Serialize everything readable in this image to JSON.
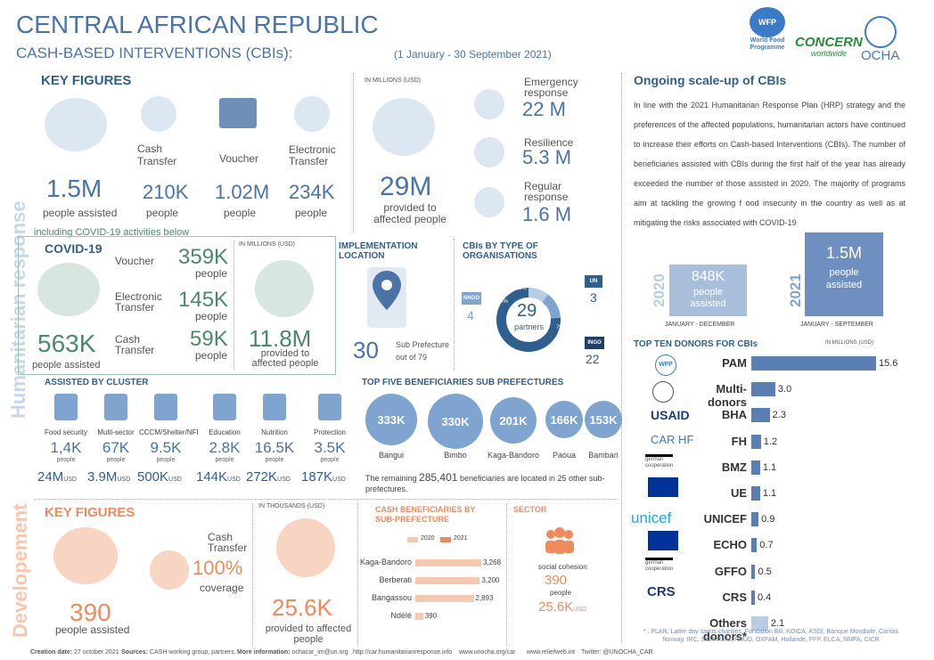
{
  "header": {
    "title": "CENTRAL AFRICAN REPUBLIC",
    "subtitle": "CASH-BASED INTERVENTIONS (CBIs):",
    "period": "(1 January -  30 September 2021)"
  },
  "logos": {
    "wfp": "WFP",
    "wfp_name": "World Food Programme",
    "concern": "CONCERN",
    "concern_sub": "worldwide",
    "ocha": "OCHA"
  },
  "sidebar": {
    "humanitarian": "Humanitarian response",
    "development": "Developement"
  },
  "key_figures": {
    "title": "KEY FIGURES",
    "people_value": "1.5M",
    "people_label": "people assisted",
    "cash_label": "Cash\nTransfer",
    "cash_value": "210K",
    "cash_unit": "people",
    "voucher_label": "Voucher",
    "voucher_value": "1.02M",
    "voucher_unit": "people",
    "electronic_label": "Electronic\nTransfer",
    "electronic_value": "234K",
    "electronic_unit": "people",
    "covid_note": "including COVID-19 activities below",
    "millions_label": "IN MILLIONS (USD)",
    "total_value": "29M",
    "total_label": "provided to\naffected people",
    "emergency_label": "Emergency\nresponse",
    "emergency_value": "22 M",
    "resilience_label": "Resilience",
    "resilience_value": "5.3 M",
    "regular_label": "Regular\nresponse",
    "regular_value": "1.6 M"
  },
  "covid": {
    "title": "COVID-19",
    "voucher_label": "Voucher",
    "voucher_value": "359K",
    "voucher_unit": "people",
    "electronic_label": "Electronic\nTransfer",
    "electronic_value": "145K",
    "electronic_unit": "people",
    "cash_label": "Cash\nTransfer",
    "cash_value": "59K",
    "cash_unit": "people",
    "people_value": "563K",
    "people_label": "people assisted",
    "millions_label": "IN MILLIONS (USD)",
    "total_value": "11.8M",
    "total_label": "provided to\naffected people"
  },
  "implementation": {
    "title": "IMPLEMENTATION\nLOCATION",
    "value": "30",
    "label": "Sub Prefecture\nout of 79"
  },
  "orgs": {
    "title": "CBIs BY TYPE OF\nORGANISATIONS",
    "center_value": "29",
    "center_label": "partners",
    "nngo_label": "NNGO",
    "nngo_value": "4",
    "un_label": "UN",
    "un_value": "3",
    "ingo_label": "INGO",
    "ingo_value": "22",
    "pct_11": "11%",
    "pct_14": "14%",
    "pct_79": "79%",
    "share_ingo": 0.79,
    "share_nngo": 0.14,
    "share_un": 0.11,
    "color_ingo": "#2f5f8f",
    "color_nngo": "#7ea4cf",
    "color_un": "#b7cde4"
  },
  "scaleup": {
    "title": "Ongoing scale-up of CBIs",
    "text": "In line with the 2021 Humanitarian Response Plan (HRP)  strategy and the preferences of the affected populations,   humanitarian actors have continued to increase their efforts on Cash-based Interventions (CBIs). The number of beneficiaries assisted with CBIs during the first half of  the  year has already  exceeded  the number of  those assisted in 2020. The majority of programs aim  at tackling the  growing f ood insecurity in the country as well as at mitigating the risks associated with COVID-19",
    "y2020": "2020",
    "v2020": "848K",
    "l2020": "people\nassisted",
    "p2020": "JANUARY - DECEMBER",
    "y2021": "2021",
    "v2021": "1.5M",
    "l2021": "people\nassisted",
    "p2021": "JANUARY - SEPTEMBER"
  },
  "clusters": {
    "title": "ASSISTED BY CLUSTER",
    "unit": "people",
    "usd": "USD",
    "items": [
      {
        "name": "Food security",
        "people": "1,4K",
        "usd": "24M"
      },
      {
        "name": "Multi-sector",
        "people": "67K",
        "usd": "3.9M"
      },
      {
        "name": "CCCM/Shelter/NFI",
        "people": "9.5K",
        "usd": "500K"
      },
      {
        "name": "Education",
        "people": "2.8K",
        "usd": "144K"
      },
      {
        "name": "Nutrition",
        "people": "16.5K",
        "usd": "272K"
      },
      {
        "name": "Protection",
        "people": "3.5K",
        "usd": "187K"
      }
    ]
  },
  "top5": {
    "title": "TOP FIVE BENEFICIARIES SUB PREFECTURES",
    "items": [
      {
        "value": "333K",
        "name": "Bangui"
      },
      {
        "value": "330K",
        "name": "Bimbo"
      },
      {
        "value": "201K",
        "name": "Kaga-Bandoro"
      },
      {
        "value": "166K",
        "name": "Paoua"
      },
      {
        "value": "153K",
        "name": "Bambari"
      }
    ],
    "remaining_pre": "The remaining",
    "remaining_value": "285,401",
    "remaining_post": "beneficiaries are located in 25  other sub-prefectures."
  },
  "donors": {
    "title": "TOP TEN DONORS FOR CBIs",
    "unit": "IN MILLIONS (USD)",
    "items": [
      {
        "name": "PAM",
        "value": 15.6,
        "label": "15.6"
      },
      {
        "name": "Multi-donors",
        "value": 3.0,
        "label": "3.0"
      },
      {
        "name": "BHA",
        "value": 2.3,
        "label": "2.3"
      },
      {
        "name": "FH",
        "value": 1.2,
        "label": "1.2"
      },
      {
        "name": "BMZ",
        "value": 1.1,
        "label": "1.1"
      },
      {
        "name": "UE",
        "value": 1.1,
        "label": "1.1"
      },
      {
        "name": "UNICEF",
        "value": 0.9,
        "label": "0.9"
      },
      {
        "name": "ECHO",
        "value": 0.7,
        "label": "0.7"
      },
      {
        "name": "GFFO",
        "value": 0.5,
        "label": "0.5"
      },
      {
        "name": "CRS",
        "value": 0.4,
        "label": "0.4"
      },
      {
        "name": "Others donors*",
        "value": 2.1,
        "label": "2.1"
      }
    ],
    "logo_labels": {
      "wfp": "WFP",
      "usaid": "USAID",
      "carhf": "CAR HF",
      "unicef": "unicef",
      "crs": "CRS",
      "german": "german\ncooperation"
    },
    "footnote": "* : PLAN, Latter day saints charities, Fondation Bill, KOICA, ASDI, Banque Mondiale, Caritas Norway, IRC, SIDA RRM, PNUD, OXFAM, Hollande, FFP, ELCA, NMFA, CICR"
  },
  "dev": {
    "title": "KEY FIGURES",
    "people_value": "390",
    "people_label": "people assisted",
    "cash_label": "Cash\nTransfer",
    "coverage_value": "100%",
    "coverage_label": "coverage",
    "thousands_label": "IN THOUSANDS (USD)",
    "total_value": "25.6K",
    "total_label": "provided to affected\npeople"
  },
  "cash_benef": {
    "title": "CASH BENEFICIARIES BY\nSUB-PREFECTURE",
    "legend_2020": "2020",
    "legend_2021": "2021",
    "color_2020": "#f6c8ad",
    "color_2021": "#f08a5d",
    "items": [
      {
        "name": "Kaga-Bandoro",
        "value": 3268,
        "label": "3,268"
      },
      {
        "name": "Berberati",
        "value": 3200,
        "label": "3,200"
      },
      {
        "name": "Bangassou",
        "value": 2893,
        "label": "2,893"
      },
      {
        "name": "Ndélé",
        "value": 390,
        "label": "390"
      }
    ]
  },
  "sector": {
    "title": "SECTOR",
    "name": "social cohesion",
    "value": "390",
    "unit": "people",
    "usd_value": "25.6K",
    "usd": "USD"
  },
  "footer": {
    "creation": "Creation date:",
    "creation_v": "27 october 2021",
    "sources": "Sources:",
    "sources_v": "CASH working group, partners.",
    "more": "More information:",
    "more_v": "ochacar_im@un.org",
    "link1": "http://car.humanitarianresponse.info",
    "link2": "www.unocha.org/car",
    "link3": "www.reliefweb.int",
    "twitter": "Twitter: @UNOCHA_CAR"
  }
}
